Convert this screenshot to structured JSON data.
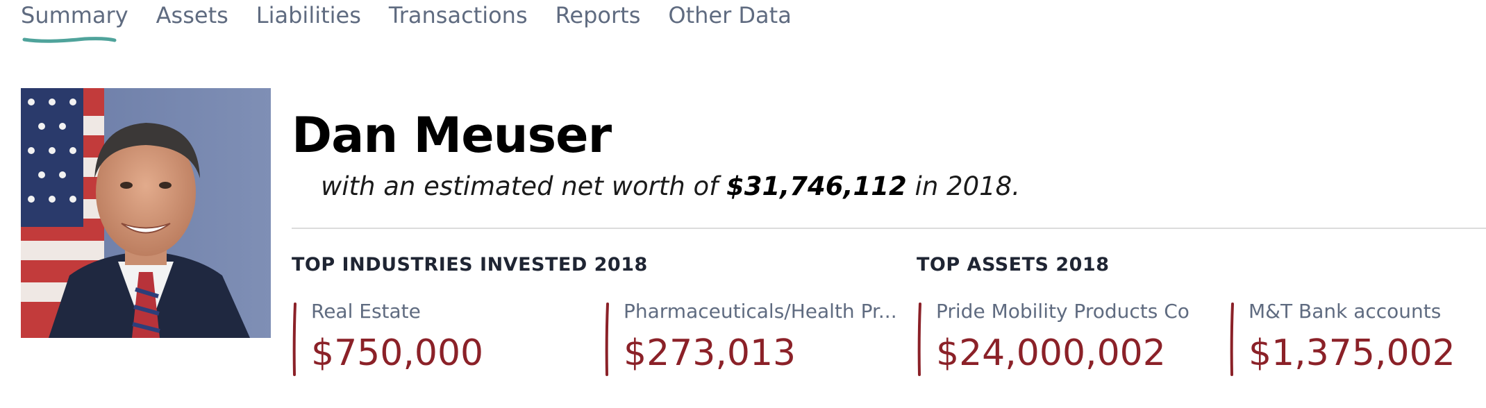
{
  "tabs": [
    {
      "label": "Summary",
      "active": true
    },
    {
      "label": "Assets",
      "active": false
    },
    {
      "label": "Liabilities",
      "active": false
    },
    {
      "label": "Transactions",
      "active": false
    },
    {
      "label": "Reports",
      "active": false
    },
    {
      "label": "Other Data",
      "active": false
    }
  ],
  "profile": {
    "name": "Dan Meuser",
    "net_worth_prefix": "with an estimated net worth of ",
    "net_worth_amount": "$31,746,112",
    "net_worth_suffix": " in 2018."
  },
  "industries": {
    "title": "TOP INDUSTRIES INVESTED 2018",
    "items": [
      {
        "label": "Real Estate",
        "value": "$750,000"
      },
      {
        "label": "Pharmaceuticals/Health Pr...",
        "value": "$273,013"
      }
    ]
  },
  "assets": {
    "title": "TOP ASSETS 2018",
    "items": [
      {
        "label": "Pride Mobility Products Co",
        "value": "$24,000,002"
      },
      {
        "label": "M&T Bank accounts",
        "value": "$1,375,002"
      }
    ]
  },
  "colors": {
    "accent_red": "#8b2128",
    "tab_underline": "#4fa39b",
    "muted_text": "#5f6b80"
  }
}
